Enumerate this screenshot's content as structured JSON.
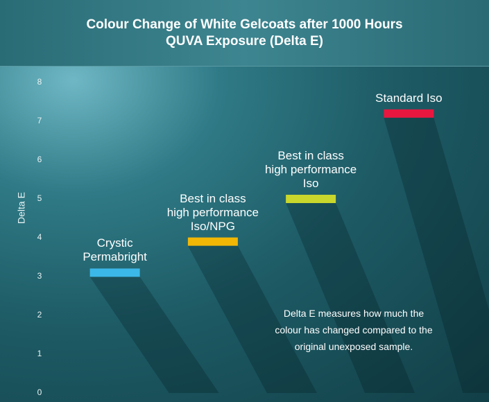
{
  "chart_data": {
    "type": "bar",
    "title": "Colour Change of White Gelcoats after 1000 Hours\nQUVA Exposure (Delta E)",
    "y_label": "Delta E",
    "annotation": "Delta E measures how much the\ncolour has changed compared to the\noriginal unexposed sample.",
    "categories": [
      "Crystic\nPermabright",
      "Best in class\nhigh performance\nIso/NPG",
      "Best in class\nhigh performance\nIso",
      "Standard Iso"
    ],
    "values": [
      3.1,
      3.9,
      5.0,
      7.2
    ],
    "colors": [
      "#3cb8e8",
      "#f2b705",
      "#c9d62c",
      "#e8173f"
    ],
    "ylim": [
      0,
      8
    ],
    "yticks": [
      0,
      1,
      2,
      3,
      4,
      5,
      6,
      7,
      8
    ],
    "grid": false
  }
}
